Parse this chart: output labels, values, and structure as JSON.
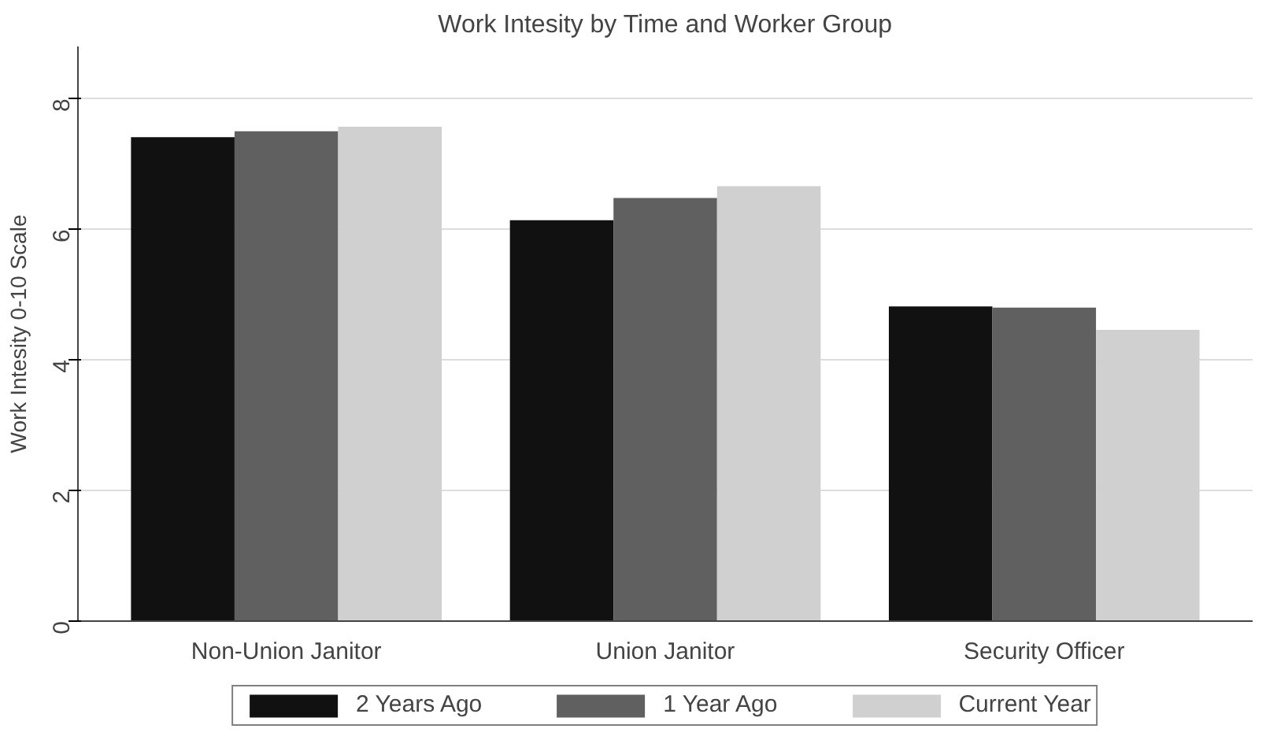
{
  "chart_data": {
    "type": "bar",
    "title": "Work Intesity by Time and Worker Group",
    "ylabel": "Work Intesity 0-10 Scale",
    "categories": [
      "Non-Union Janitor",
      "Union Janitor",
      "Security Officer"
    ],
    "series": [
      {
        "name": "2 Years Ago",
        "color": "#111111",
        "values": [
          7.41,
          6.14,
          4.82
        ]
      },
      {
        "name": "1 Year Ago",
        "color": "#606060",
        "values": [
          7.5,
          6.48,
          4.8
        ]
      },
      {
        "name": "Current Year",
        "color": "#d0d0d0",
        "values": [
          7.57,
          6.66,
          4.46
        ]
      }
    ],
    "ylim": [
      0,
      8.8
    ],
    "yticks": [
      0,
      2,
      4,
      6,
      8
    ],
    "grid": "y",
    "legend": "bottom"
  }
}
